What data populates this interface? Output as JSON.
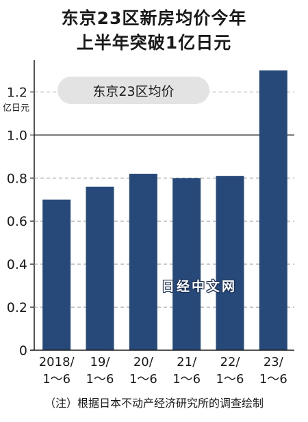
{
  "title_lines": [
    "东京23区新房均价今年",
    "上半年突破1亿日元"
  ],
  "footnote": "（注）根据日本不动产经济研究所的调查绘制",
  "watermark": "日经中文网",
  "colors": {
    "bar": "#26497a",
    "text": "#1a1a1a",
    "grid": "#9a9a9a",
    "legend_bg": "#e3e3e3"
  },
  "chart_data": {
    "type": "bar",
    "ylabel": "亿日元",
    "ylim": [
      0,
      1.3
    ],
    "yticks": [
      0,
      0.2,
      0.4,
      0.6,
      0.8,
      1.0,
      1.2
    ],
    "ytick_labels": [
      "0",
      "0.2",
      "0.4",
      "0.6",
      "0.8",
      "1.0",
      "1.2"
    ],
    "gridlines": "dashed",
    "reference_line": 1.0,
    "categories": [
      [
        "2018/",
        "1～6"
      ],
      [
        "19/",
        "1～6"
      ],
      [
        "20/",
        "1～6"
      ],
      [
        "21/",
        "1～6"
      ],
      [
        "22/",
        "1～6"
      ],
      [
        "23/",
        "1～6"
      ]
    ],
    "series": [
      {
        "name": "东京23区均价",
        "values": [
          0.7,
          0.76,
          0.82,
          0.8,
          0.81,
          1.3
        ]
      }
    ]
  }
}
